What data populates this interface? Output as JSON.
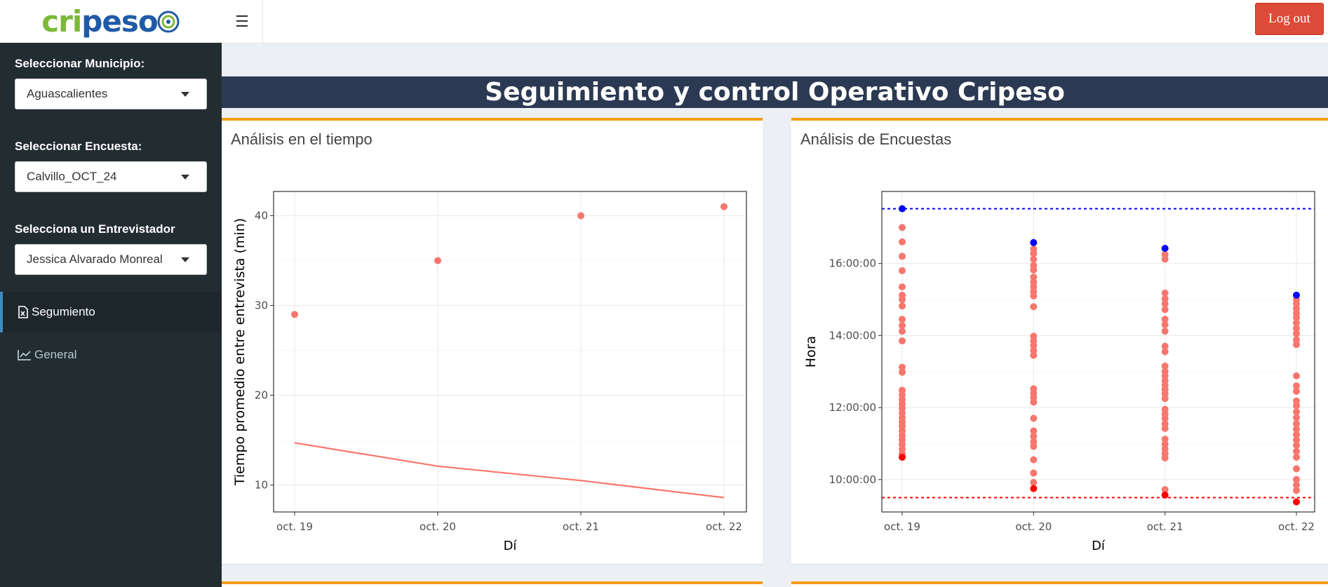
{
  "header": {
    "logo_text_a": "cri",
    "logo_text_b": "peso",
    "logout_label": "Log out"
  },
  "sidebar": {
    "municipio_label": "Seleccionar Municipio:",
    "municipio_value": "Aguascalientes",
    "encuesta_label": "Seleccionar Encuesta:",
    "encuesta_value": "Calvillo_OCT_24",
    "entrevistador_label": "Selecciona un Entrevistador",
    "entrevistador_value": "Jessica Alvarado Monreal",
    "menu": [
      {
        "label": "Segumiento",
        "icon": "file-excel-icon",
        "active": true
      },
      {
        "label": "General",
        "icon": "line-chart-icon",
        "active": false
      }
    ]
  },
  "main": {
    "page_title": "Seguimiento y control Operativo Cripeso",
    "box_left_title": "Análisis en el tiempo",
    "box_right_title": "Análisis de Encuestas"
  },
  "colors": {
    "sidebar_bg": "#222d32",
    "title_bar_bg": "#2b3a52",
    "box_accent": "#f39c12",
    "logout_bg": "#dd4b39",
    "point_color": "#f8766d",
    "max_color": "#0000ff",
    "min_color": "#ff0000"
  },
  "chart_data": [
    {
      "type": "scatter",
      "title": "",
      "xlabel": "Dí",
      "ylabel": "Tiempo promedio entre entrevista (min)",
      "categories": [
        "oct. 19",
        "oct. 20",
        "oct. 21",
        "oct. 22"
      ],
      "yticks": [
        10,
        20,
        30,
        40
      ],
      "ylim": [
        7,
        42.7
      ],
      "series": [
        {
          "kind": "points",
          "values": [
            29,
            35,
            40,
            41
          ]
        },
        {
          "kind": "line",
          "values": [
            14.7,
            12.1,
            10.5,
            8.6
          ]
        }
      ],
      "grid": true
    },
    {
      "type": "scatter",
      "title": "",
      "xlabel": "Dí",
      "ylabel": "Hora",
      "categories": [
        "oct. 19",
        "oct. 20",
        "oct. 21",
        "oct. 22"
      ],
      "ytick_labels": [
        "10:00:00",
        "12:00:00",
        "14:00:00",
        "16:00:00"
      ],
      "yticks_hours": [
        10,
        12,
        14,
        16
      ],
      "ylim_hours": [
        9.1,
        18.0
      ],
      "reference_lines_hours": {
        "max": 17.52,
        "min": 9.5
      },
      "max_points_hours": [
        17.52,
        16.58,
        16.42,
        15.12
      ],
      "min_points_hours": [
        10.62,
        9.75,
        9.57,
        9.38
      ],
      "points_hours": [
        [
          17.0,
          16.6,
          16.2,
          15.8,
          15.35,
          15.12,
          15.0,
          14.82,
          14.45,
          14.28,
          14.12,
          13.85,
          13.12,
          12.98,
          12.48,
          12.35,
          12.22,
          12.1,
          11.98,
          11.85,
          11.72,
          11.6,
          11.48,
          11.35,
          11.22,
          11.1,
          10.98,
          10.85,
          10.72
        ],
        [
          16.4,
          16.28,
          16.12,
          15.95,
          15.82,
          15.62,
          15.48,
          15.35,
          15.22,
          15.1,
          14.8,
          13.98,
          13.85,
          13.72,
          13.58,
          13.45,
          12.52,
          12.4,
          12.28,
          12.15,
          11.7,
          11.35,
          11.2,
          11.05,
          10.92,
          10.55,
          10.18,
          9.92
        ],
        [
          16.25,
          16.12,
          15.18,
          15.02,
          14.88,
          14.72,
          14.45,
          14.3,
          14.12,
          13.7,
          13.55,
          13.15,
          13.0,
          12.88,
          12.75,
          12.62,
          12.5,
          12.38,
          12.25,
          11.95,
          11.82,
          11.7,
          11.55,
          11.42,
          11.12,
          10.98,
          10.85,
          10.72,
          10.6,
          9.72
        ],
        [
          15.0,
          14.88,
          14.75,
          14.62,
          14.5,
          14.35,
          14.2,
          14.05,
          13.88,
          13.75,
          12.88,
          12.6,
          12.45,
          12.18,
          12.05,
          11.88,
          11.72,
          11.55,
          11.4,
          11.25,
          11.1,
          10.95,
          10.78,
          10.62,
          10.3,
          10.0,
          9.85,
          9.7
        ]
      ],
      "grid": true
    }
  ]
}
